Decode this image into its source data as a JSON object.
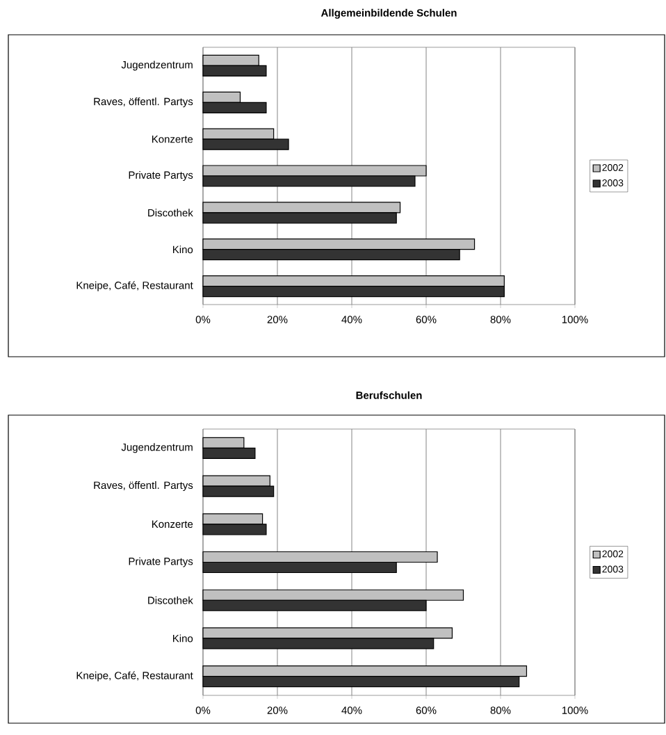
{
  "chart_data": [
    {
      "type": "bar",
      "title": "Allgemeinbildende Schulen",
      "orientation": "horizontal",
      "categories": [
        "Jugendzentrum",
        "Raves, öffentl. Partys",
        "Konzerte",
        "Private Partys",
        "Discothek",
        "Kino",
        "Kneipe, Café, Restaurant"
      ],
      "series": [
        {
          "name": "2002",
          "color": "#c0c0c0",
          "values": [
            15,
            10,
            19,
            60,
            53,
            73,
            81
          ]
        },
        {
          "name": "2003",
          "color": "#333333",
          "values": [
            17,
            17,
            23,
            57,
            52,
            69,
            81
          ]
        }
      ],
      "xlim": [
        0,
        100
      ],
      "xticks": [
        {
          "value": 0,
          "label": "0%"
        },
        {
          "value": 20,
          "label": "20%"
        },
        {
          "value": 40,
          "label": "40%"
        },
        {
          "value": 60,
          "label": "60%"
        },
        {
          "value": 80,
          "label": "80%"
        },
        {
          "value": 100,
          "label": "100%"
        }
      ],
      "grid": "x",
      "legend": "right"
    },
    {
      "type": "bar",
      "title": "Berufschulen",
      "orientation": "horizontal",
      "categories": [
        "Jugendzentrum",
        "Raves, öffentl. Partys",
        "Konzerte",
        "Private Partys",
        "Discothek",
        "Kino",
        "Kneipe, Café, Restaurant"
      ],
      "series": [
        {
          "name": "2002",
          "color": "#c0c0c0",
          "values": [
            11,
            18,
            16,
            63,
            70,
            67,
            87
          ]
        },
        {
          "name": "2003",
          "color": "#333333",
          "values": [
            14,
            19,
            17,
            52,
            60,
            62,
            85
          ]
        }
      ],
      "xlim": [
        0,
        100
      ],
      "xticks": [
        {
          "value": 0,
          "label": "0%"
        },
        {
          "value": 20,
          "label": "20%"
        },
        {
          "value": 40,
          "label": "40%"
        },
        {
          "value": 60,
          "label": "60%"
        },
        {
          "value": 80,
          "label": "80%"
        },
        {
          "value": 100,
          "label": "100%"
        }
      ],
      "grid": "x",
      "legend": "right"
    }
  ]
}
